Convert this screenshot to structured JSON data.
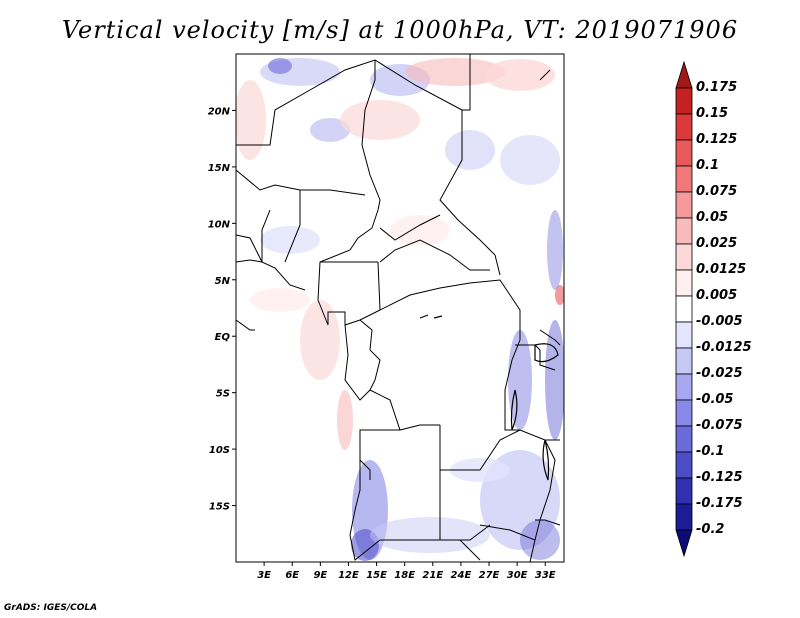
{
  "title": "Vertical velocity [m/s] at 1000hPa, VT: 2019071906",
  "credit": "GrADS: IGES/COLA",
  "map": {
    "lon_range": [
      0,
      35
    ],
    "lat_range": [
      -20,
      25
    ],
    "lat_ticks": [
      {
        "value": 20,
        "label": "20N"
      },
      {
        "value": 15,
        "label": "15N"
      },
      {
        "value": 10,
        "label": "10N"
      },
      {
        "value": 5,
        "label": "5N"
      },
      {
        "value": 0,
        "label": "EQ"
      },
      {
        "value": -5,
        "label": "5S"
      },
      {
        "value": -10,
        "label": "10S"
      },
      {
        "value": -15,
        "label": "15S"
      }
    ],
    "lon_ticks": [
      {
        "value": 3,
        "label": "3E"
      },
      {
        "value": 6,
        "label": "6E"
      },
      {
        "value": 9,
        "label": "9E"
      },
      {
        "value": 12,
        "label": "12E"
      },
      {
        "value": 15,
        "label": "15E"
      },
      {
        "value": 18,
        "label": "18E"
      },
      {
        "value": 21,
        "label": "21E"
      },
      {
        "value": 24,
        "label": "24E"
      },
      {
        "value": 27,
        "label": "27E"
      },
      {
        "value": 30,
        "label": "30E"
      },
      {
        "value": 33,
        "label": "33E"
      }
    ]
  },
  "colorbar": {
    "labels": [
      "0.175",
      "0.15",
      "0.125",
      "0.1",
      "0.075",
      "0.05",
      "0.025",
      "0.0125",
      "0.005",
      "-0.005",
      "-0.0125",
      "-0.025",
      "-0.05",
      "-0.075",
      "-0.1",
      "-0.125",
      "-0.175",
      "-0.2"
    ],
    "colors": [
      "#a01818",
      "#c42222",
      "#dc3a3a",
      "#e85a5a",
      "#f07878",
      "#f49a9a",
      "#f8baba",
      "#fcd8d8",
      "#fff0f0",
      "#ffffff",
      "#e4e4fc",
      "#c8c8f6",
      "#a8a8f0",
      "#8888e6",
      "#6a6ad8",
      "#4c4cc6",
      "#3030b0",
      "#1c1c96",
      "#0c0c78"
    ]
  }
}
